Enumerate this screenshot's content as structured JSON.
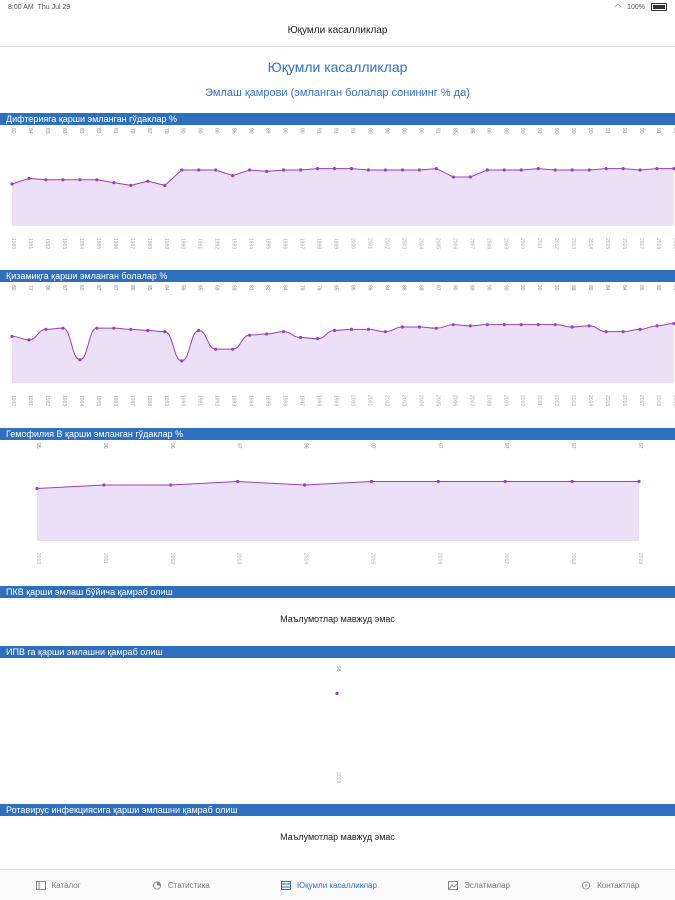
{
  "status": {
    "time": "8:00 AM",
    "date": "Thu Jul 29",
    "battery": "100%"
  },
  "nav": {
    "title": "Юқумли касалликлар"
  },
  "page": {
    "title": "Юқумли касалликлар",
    "subtitle": "Эмлаш қамрови (эмланган болалар сонининг % да)"
  },
  "sections": {
    "s1": {
      "title": "Дифтерияга қарши эмланган гўдаклар %"
    },
    "s2": {
      "title": "Қизамиқга қарши эмланган болалар %"
    },
    "s3": {
      "title": "Гемофилия B қарши эмланган гўдаклар %"
    },
    "s4": {
      "title": "ПКВ қарши эмлаш бўйича қамраб олиш",
      "empty": "Маълумотлар мавжуд эмас"
    },
    "s5": {
      "title": "ИПВ га қарши эмлашни қамраб олиш"
    },
    "s6": {
      "title": "Ротавирус инфекциясига қарши эмлашни қамраб олиш",
      "empty": "Маълумотлар мавжуд эмас"
    }
  },
  "chart_data": [
    {
      "type": "area",
      "title": "Дифтерияга қарши эмланган гўдаклар %",
      "x": [
        "1980",
        "1981",
        "1982",
        "1983",
        "1984",
        "1985",
        "1986",
        "1987",
        "1988",
        "1989",
        "1990",
        "1991",
        "1992",
        "1993",
        "1994",
        "1995",
        "1996",
        "1997",
        "1998",
        "1999",
        "2000",
        "2001",
        "2002",
        "2003",
        "2004",
        "2005",
        "2006",
        "2007",
        "2008",
        "2009",
        "2010",
        "2011",
        "2012",
        "2013",
        "2014",
        "2015",
        "2016",
        "2017",
        "2018",
        "2019"
      ],
      "values": [
        80,
        84,
        83,
        83,
        83,
        83,
        81,
        79,
        82,
        79,
        90,
        90,
        90,
        86,
        90,
        89,
        90,
        90,
        91,
        91,
        91,
        90,
        90,
        90,
        90,
        91,
        85,
        85,
        90,
        90,
        90,
        91,
        90,
        90,
        90,
        91,
        91,
        90,
        91,
        91
      ],
      "ylim": [
        0,
        100
      ]
    },
    {
      "type": "area",
      "title": "Қизамиқга қарши эмланган болалар %",
      "x": [
        "1980",
        "1981",
        "1982",
        "1983",
        "1984",
        "1985",
        "1986",
        "1987",
        "1988",
        "1989",
        "1990",
        "1991",
        "1992",
        "1993",
        "1994",
        "1995",
        "1996",
        "1997",
        "1998",
        "1999",
        "2000",
        "2001",
        "2002",
        "2003",
        "2004",
        "2005",
        "2006",
        "2007",
        "2008",
        "2009",
        "2010",
        "2011",
        "2012",
        "2013",
        "2014",
        "2015",
        "2016",
        "2017",
        "2018",
        "2019"
      ],
      "values": [
        80,
        77,
        86,
        87,
        60,
        87,
        87,
        86,
        85,
        84,
        59,
        85,
        69,
        69,
        81,
        82,
        84,
        79,
        78,
        85,
        86,
        86,
        84,
        88,
        88,
        87,
        90,
        89,
        90,
        90,
        90,
        90,
        90,
        88,
        89,
        84,
        84,
        86,
        89,
        91
      ],
      "ylim": [
        0,
        100
      ]
    },
    {
      "type": "area",
      "title": "Гемофилия B қарши эмланган гўдаклар %",
      "x": [
        "2010",
        "2011",
        "2012",
        "2013",
        "2014",
        "2015",
        "2016",
        "2017",
        "2018",
        "2019"
      ],
      "values": [
        95,
        96,
        96,
        97,
        96,
        97,
        97,
        97,
        97,
        97
      ],
      "ylim": [
        0,
        100
      ]
    },
    {
      "type": "scatter",
      "title": "ИПВ га қарши эмлашни қамраб олиш",
      "x": [
        "2019"
      ],
      "values": [
        98
      ]
    }
  ],
  "tabs": [
    {
      "label": "Каталог",
      "icon": "catalog-icon",
      "active": false
    },
    {
      "label": "Статистика",
      "icon": "statistics-icon",
      "active": false
    },
    {
      "label": "Юқумли касалликлар",
      "icon": "diseases-icon",
      "active": true
    },
    {
      "label": "Эслатмалар",
      "icon": "notes-icon",
      "active": false
    },
    {
      "label": "Контактлар",
      "icon": "contacts-icon",
      "active": false
    }
  ],
  "colors": {
    "accent": "#2f73c9",
    "bar": "#2f6fbf",
    "line": "#9b3fbf",
    "fill": "#ecdff8"
  }
}
